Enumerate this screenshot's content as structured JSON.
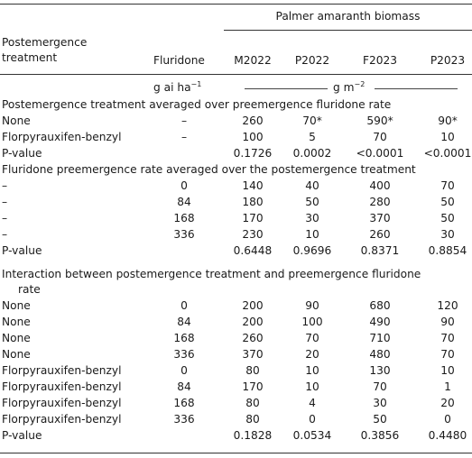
{
  "header": {
    "group_title": "Palmer amaranth biomass",
    "col_treatment_line1": "Postemergence",
    "col_treatment_line2": "treatment",
    "col_fluridone": "Fluridone",
    "col_m2022": "M2022",
    "col_p2022": "P2022",
    "col_f2023": "F2023",
    "col_p2023": "P2023",
    "unit_rate": "g ai ha",
    "unit_rate_sup": "−1",
    "unit_biomass": "g m",
    "unit_biomass_sup": "−2"
  },
  "sections": {
    "s1_title": "Postemergence treatment averaged over preemergence fluridone rate",
    "s2_title": "Fluridone preemergence rate averaged over the postemergence treatment",
    "s3_title_line1": "Interaction between postemergence treatment and preemergence fluridone",
    "s3_title_line2": "rate"
  },
  "rows": [
    {
      "treatment": "None",
      "rate": "–",
      "m2022": "260",
      "p2022": "70*",
      "f2023": "590*",
      "p2023": "90*"
    },
    {
      "treatment": "Florpyrauxifen-benzyl",
      "rate": "–",
      "m2022": "100",
      "p2022": "5",
      "f2023": "70",
      "p2023": "10"
    },
    {
      "treatment": "P-value",
      "rate": "",
      "m2022": "0.1726",
      "p2022": "0.0002",
      "f2023": "<0.0001",
      "p2023": "<0.0001"
    },
    {
      "treatment": "–",
      "rate": "0",
      "m2022": "140",
      "p2022": "40",
      "f2023": "400",
      "p2023": "70"
    },
    {
      "treatment": "–",
      "rate": "84",
      "m2022": "180",
      "p2022": "50",
      "f2023": "280",
      "p2023": "50"
    },
    {
      "treatment": "–",
      "rate": "168",
      "m2022": "170",
      "p2022": "30",
      "f2023": "370",
      "p2023": "50"
    },
    {
      "treatment": "–",
      "rate": "336",
      "m2022": "230",
      "p2022": "10",
      "f2023": "260",
      "p2023": "30"
    },
    {
      "treatment": "P-value",
      "rate": "",
      "m2022": "0.6448",
      "p2022": "0.9696",
      "f2023": "0.8371",
      "p2023": "0.8854"
    },
    {
      "treatment": "None",
      "rate": "0",
      "m2022": "200",
      "p2022": "90",
      "f2023": "680",
      "p2023": "120"
    },
    {
      "treatment": "None",
      "rate": "84",
      "m2022": "200",
      "p2022": "100",
      "f2023": "490",
      "p2023": "90"
    },
    {
      "treatment": "None",
      "rate": "168",
      "m2022": "260",
      "p2022": "70",
      "f2023": "710",
      "p2023": "70"
    },
    {
      "treatment": "None",
      "rate": "336",
      "m2022": "370",
      "p2022": "20",
      "f2023": "480",
      "p2023": "70"
    },
    {
      "treatment": "Florpyrauxifen-benzyl",
      "rate": "0",
      "m2022": "80",
      "p2022": "10",
      "f2023": "130",
      "p2023": "10"
    },
    {
      "treatment": "Florpyrauxifen-benzyl",
      "rate": "84",
      "m2022": "170",
      "p2022": "10",
      "f2023": "70",
      "p2023": "1"
    },
    {
      "treatment": "Florpyrauxifen-benzyl",
      "rate": "168",
      "m2022": "80",
      "p2022": "4",
      "f2023": "30",
      "p2023": "20"
    },
    {
      "treatment": "Florpyrauxifen-benzyl",
      "rate": "336",
      "m2022": "80",
      "p2022": "0",
      "f2023": "50",
      "p2023": "0"
    },
    {
      "treatment": "P-value",
      "rate": "",
      "m2022": "0.1828",
      "p2022": "0.0534",
      "f2023": "0.3856",
      "p2023": "0.4480"
    }
  ]
}
